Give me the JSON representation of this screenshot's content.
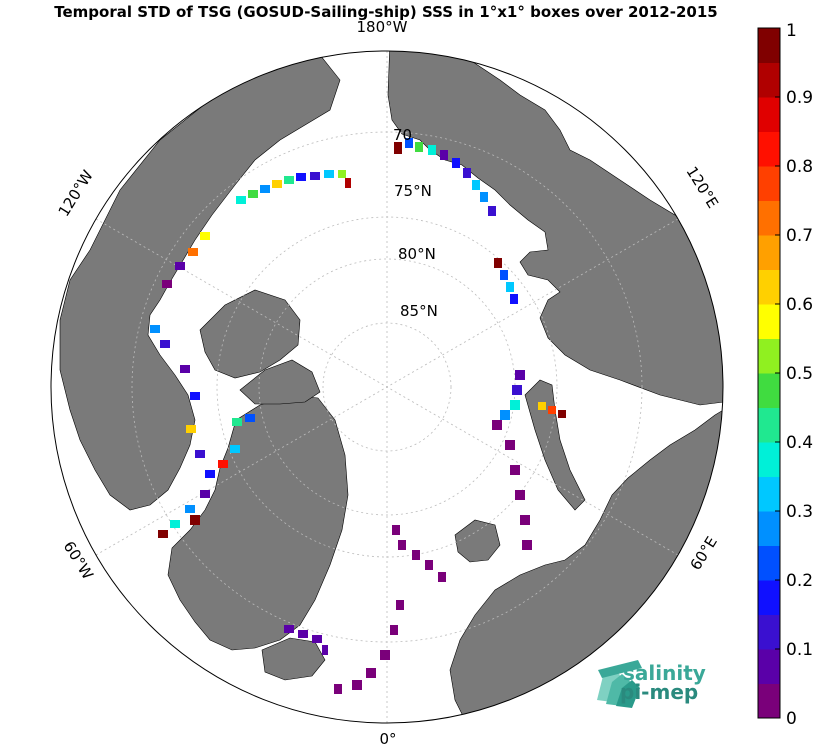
{
  "title": "Temporal STD of TSG (GOSUD-Sailing-ship) SSS in 1°x1° boxes over 2012-2015",
  "meridians": [
    "180°W",
    "120°W",
    "60°W",
    "0°",
    "60°E",
    "120°E"
  ],
  "parallels": [
    "70",
    "75°N",
    "80°N",
    "85°N"
  ],
  "colorbar": {
    "ticks": [
      "0",
      "0.1",
      "0.2",
      "0.3",
      "0.4",
      "0.5",
      "0.6",
      "0.7",
      "0.8",
      "0.9",
      "1"
    ],
    "min": 0,
    "max": 1,
    "colors": [
      "#7a007a",
      "#5a00a8",
      "#3a10d0",
      "#1010ff",
      "#0050ff",
      "#0090ff",
      "#00c8ff",
      "#00f0d8",
      "#20e890",
      "#40dc40",
      "#90f020",
      "#ffff00",
      "#ffd000",
      "#ffa000",
      "#ff7000",
      "#ff4000",
      "#ff1000",
      "#e00000",
      "#b00000",
      "#800000"
    ]
  },
  "colors": {
    "land": "#7a7a7a",
    "ocean": "#ffffff",
    "grid": "#bbbbbb"
  },
  "logo": {
    "line1": "salinity",
    "line2": "pi-mep",
    "icon": "salinity-waves-icon"
  }
}
